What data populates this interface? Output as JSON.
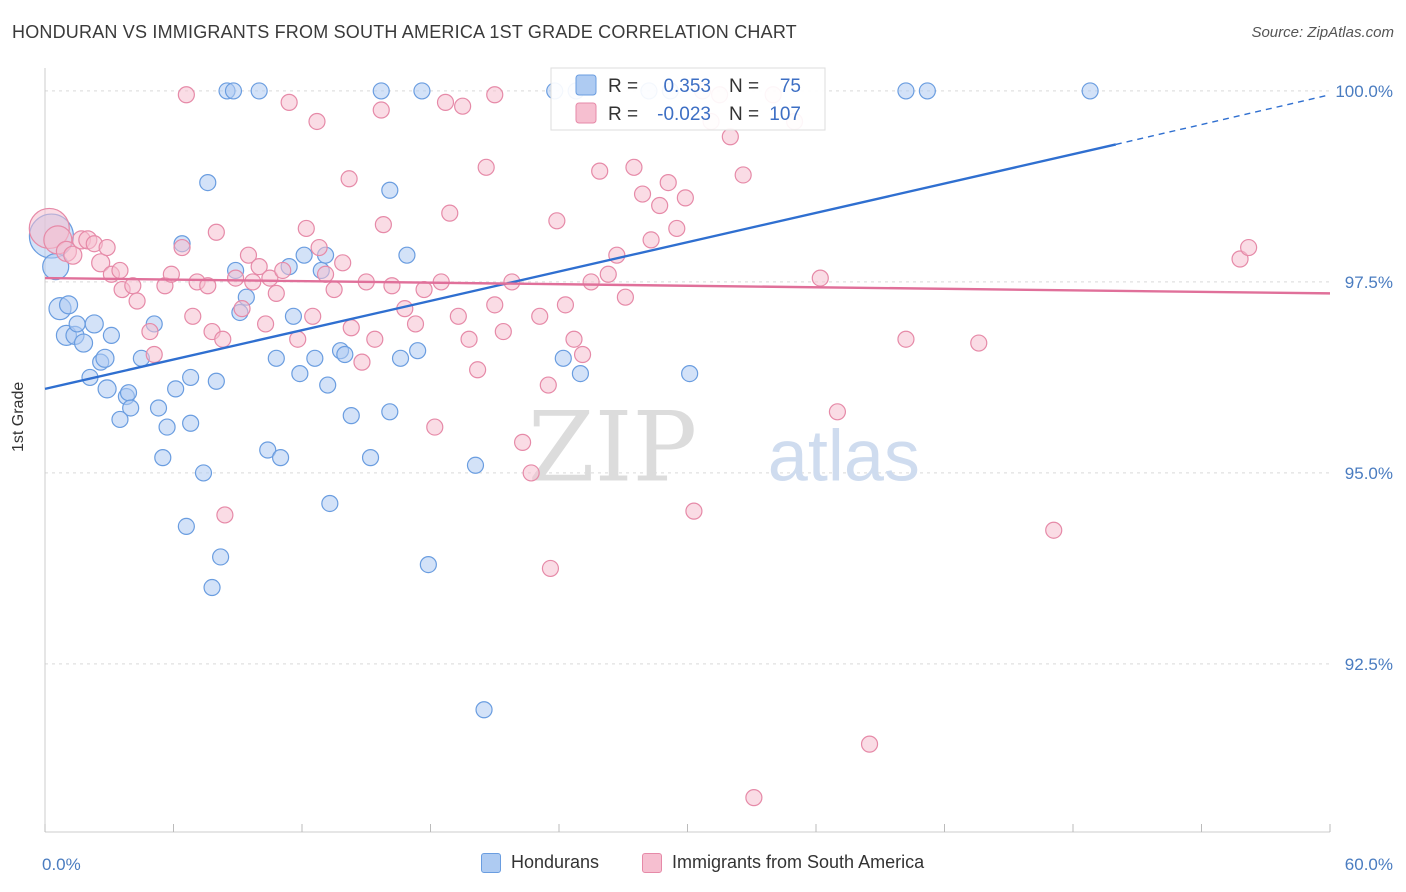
{
  "chart_data": {
    "type": "scatter",
    "title": "HONDURAN VS IMMIGRANTS FROM SOUTH AMERICA 1ST GRADE CORRELATION CHART",
    "source": "Source: ZipAtlas.com",
    "ylabel": "1st Grade",
    "xlim": [
      0,
      60
    ],
    "ylim": [
      90.3,
      100.3
    ],
    "x_ticks": [
      {
        "value": 0,
        "label": "0.0%"
      },
      {
        "value": 60,
        "label": "60.0%"
      }
    ],
    "y_ticks": [
      {
        "value": 100,
        "label": "100.0%"
      },
      {
        "value": 97.5,
        "label": "97.5%"
      },
      {
        "value": 95,
        "label": "95.0%"
      },
      {
        "value": 92.5,
        "label": "92.5%"
      }
    ],
    "watermark": {
      "zip": "ZIP",
      "atlas": "atlas"
    },
    "legend": {
      "r_label": "R =",
      "n_label": "N =",
      "entries": [
        {
          "r": "0.353",
          "n": "75"
        },
        {
          "r": "-0.023",
          "n": "107"
        }
      ]
    },
    "series": [
      {
        "name": "Hondurans",
        "color": "#6a9de0",
        "fill": "#aecbf2",
        "trend": {
          "x0": 0,
          "y0": 96.1,
          "x1": 50,
          "y1": 99.3,
          "dash_to_x": 60,
          "dash_to_y": 99.95
        },
        "points": [
          [
            0.3,
            98.1,
            22
          ],
          [
            0.5,
            97.7,
            13
          ],
          [
            0.7,
            97.15,
            11
          ],
          [
            1.0,
            96.8,
            10
          ],
          [
            1.1,
            97.2,
            9
          ],
          [
            1.4,
            96.8,
            9
          ],
          [
            1.5,
            96.95,
            8
          ],
          [
            1.8,
            96.7,
            9
          ],
          [
            2.1,
            96.25,
            8
          ],
          [
            2.3,
            96.95,
            9
          ],
          [
            2.6,
            96.45,
            8
          ],
          [
            2.8,
            96.5,
            9
          ],
          [
            3.1,
            96.8,
            8
          ],
          [
            2.9,
            96.1,
            9
          ],
          [
            3.8,
            96.0,
            8
          ],
          [
            3.9,
            96.05,
            8
          ],
          [
            4.0,
            95.85,
            8
          ],
          [
            3.5,
            95.7,
            8
          ],
          [
            4.5,
            96.5,
            8
          ],
          [
            5.1,
            96.95,
            8
          ],
          [
            5.3,
            95.85,
            8
          ],
          [
            5.5,
            95.2,
            8
          ],
          [
            5.7,
            95.6,
            8
          ],
          [
            6.1,
            96.1,
            8
          ],
          [
            6.4,
            98.0,
            8
          ],
          [
            6.6,
            94.3,
            8
          ],
          [
            6.8,
            96.25,
            8
          ],
          [
            6.8,
            95.65,
            8
          ],
          [
            7.4,
            95.0,
            8
          ],
          [
            7.6,
            98.8,
            8
          ],
          [
            7.8,
            93.5,
            8
          ],
          [
            8.0,
            96.2,
            8
          ],
          [
            8.2,
            93.9,
            8
          ],
          [
            8.5,
            100.0,
            8
          ],
          [
            8.8,
            100.0,
            8
          ],
          [
            8.9,
            97.65,
            8
          ],
          [
            9.1,
            97.1,
            8
          ],
          [
            9.4,
            97.3,
            8
          ],
          [
            10.0,
            100.0,
            8
          ],
          [
            10.4,
            95.3,
            8
          ],
          [
            10.8,
            96.5,
            8
          ],
          [
            11.0,
            95.2,
            8
          ],
          [
            11.4,
            97.7,
            8
          ],
          [
            11.6,
            97.05,
            8
          ],
          [
            11.9,
            96.3,
            8
          ],
          [
            12.1,
            97.85,
            8
          ],
          [
            12.6,
            96.5,
            8
          ],
          [
            12.9,
            97.65,
            8
          ],
          [
            13.1,
            97.85,
            8
          ],
          [
            13.2,
            96.15,
            8
          ],
          [
            13.3,
            94.6,
            8
          ],
          [
            13.8,
            96.6,
            8
          ],
          [
            14.0,
            96.55,
            8
          ],
          [
            14.3,
            95.75,
            8
          ],
          [
            15.2,
            95.2,
            8
          ],
          [
            15.7,
            100.0,
            8
          ],
          [
            16.1,
            98.7,
            8
          ],
          [
            16.1,
            95.8,
            8
          ],
          [
            16.6,
            96.5,
            8
          ],
          [
            16.9,
            97.85,
            8
          ],
          [
            17.4,
            96.6,
            8
          ],
          [
            17.6,
            100.0,
            8
          ],
          [
            17.9,
            93.8,
            8
          ],
          [
            20.1,
            95.1,
            8
          ],
          [
            20.5,
            91.9,
            8
          ],
          [
            24.2,
            96.5,
            8
          ],
          [
            24.8,
            100.0,
            8
          ],
          [
            25.0,
            96.3,
            8
          ],
          [
            28.2,
            100.0,
            8
          ],
          [
            29.2,
            100.0,
            8
          ],
          [
            30.1,
            96.3,
            8
          ],
          [
            40.2,
            100.0,
            8
          ],
          [
            41.2,
            100.0,
            8
          ],
          [
            48.8,
            100.0,
            8
          ],
          [
            23.8,
            100.0,
            8
          ]
        ]
      },
      {
        "name": "Immigrants from South America",
        "color": "#e68aa8",
        "fill": "#f6bfd0",
        "trend": {
          "x0": 0,
          "y0": 97.55,
          "x1": 60,
          "y1": 97.35
        },
        "points": [
          [
            0.2,
            98.2,
            20
          ],
          [
            0.6,
            98.05,
            14
          ],
          [
            1.0,
            97.9,
            10
          ],
          [
            1.3,
            97.85,
            9
          ],
          [
            1.7,
            98.05,
            9
          ],
          [
            2.0,
            98.05,
            9
          ],
          [
            2.3,
            98.0,
            8
          ],
          [
            2.6,
            97.75,
            9
          ],
          [
            2.9,
            97.95,
            8
          ],
          [
            3.1,
            97.6,
            8
          ],
          [
            3.5,
            97.65,
            8
          ],
          [
            3.6,
            97.4,
            8
          ],
          [
            4.1,
            97.45,
            8
          ],
          [
            4.3,
            97.25,
            8
          ],
          [
            4.9,
            96.85,
            8
          ],
          [
            5.1,
            96.55,
            8
          ],
          [
            5.6,
            97.45,
            8
          ],
          [
            5.9,
            97.6,
            8
          ],
          [
            6.4,
            97.95,
            8
          ],
          [
            6.9,
            97.05,
            8
          ],
          [
            7.1,
            97.5,
            8
          ],
          [
            7.6,
            97.45,
            8
          ],
          [
            7.8,
            96.85,
            8
          ],
          [
            8.0,
            98.15,
            8
          ],
          [
            8.3,
            96.75,
            8
          ],
          [
            8.9,
            97.55,
            8
          ],
          [
            9.2,
            97.15,
            8
          ],
          [
            9.5,
            97.85,
            8
          ],
          [
            9.7,
            97.5,
            8
          ],
          [
            10.0,
            97.7,
            8
          ],
          [
            10.3,
            96.95,
            8
          ],
          [
            10.5,
            97.55,
            8
          ],
          [
            10.8,
            97.35,
            8
          ],
          [
            11.1,
            97.65,
            8
          ],
          [
            11.8,
            96.75,
            8
          ],
          [
            12.2,
            98.2,
            8
          ],
          [
            12.5,
            97.05,
            8
          ],
          [
            12.8,
            97.95,
            8
          ],
          [
            13.1,
            97.6,
            8
          ],
          [
            13.5,
            97.4,
            8
          ],
          [
            13.9,
            97.75,
            8
          ],
          [
            14.3,
            96.9,
            8
          ],
          [
            14.8,
            96.45,
            8
          ],
          [
            15.0,
            97.5,
            8
          ],
          [
            15.4,
            96.75,
            8
          ],
          [
            15.8,
            98.25,
            8
          ],
          [
            16.2,
            97.45,
            8
          ],
          [
            16.8,
            97.15,
            8
          ],
          [
            17.3,
            96.95,
            8
          ],
          [
            17.7,
            97.4,
            8
          ],
          [
            18.2,
            95.6,
            8
          ],
          [
            18.5,
            97.5,
            8
          ],
          [
            18.9,
            98.4,
            8
          ],
          [
            19.3,
            97.05,
            8
          ],
          [
            19.8,
            96.75,
            8
          ],
          [
            20.2,
            96.35,
            8
          ],
          [
            20.6,
            99.0,
            8
          ],
          [
            21.0,
            97.2,
            8
          ],
          [
            21.4,
            96.85,
            8
          ],
          [
            21.8,
            97.5,
            8
          ],
          [
            22.3,
            95.4,
            8
          ],
          [
            22.7,
            95.0,
            8
          ],
          [
            23.1,
            97.05,
            8
          ],
          [
            23.5,
            96.15,
            8
          ],
          [
            23.9,
            98.3,
            8
          ],
          [
            24.3,
            97.2,
            8
          ],
          [
            24.7,
            96.75,
            8
          ],
          [
            25.1,
            96.55,
            8
          ],
          [
            25.5,
            97.5,
            8
          ],
          [
            25.9,
            98.95,
            8
          ],
          [
            26.3,
            97.6,
            8
          ],
          [
            26.7,
            97.85,
            8
          ],
          [
            27.1,
            97.3,
            8
          ],
          [
            27.5,
            99.0,
            8
          ],
          [
            27.9,
            98.65,
            8
          ],
          [
            28.3,
            98.05,
            8
          ],
          [
            28.7,
            98.5,
            8
          ],
          [
            29.1,
            98.8,
            8
          ],
          [
            29.5,
            98.2,
            8
          ],
          [
            29.9,
            98.6,
            8
          ],
          [
            30.3,
            94.5,
            8
          ],
          [
            30.7,
            100.0,
            8
          ],
          [
            31.1,
            99.6,
            8
          ],
          [
            31.5,
            99.95,
            8
          ],
          [
            32.0,
            99.4,
            8
          ],
          [
            32.6,
            98.9,
            8
          ],
          [
            33.1,
            90.75,
            8
          ],
          [
            34.0,
            99.95,
            8
          ],
          [
            35.0,
            99.6,
            8
          ],
          [
            36.2,
            97.55,
            8
          ],
          [
            37.0,
            95.8,
            8
          ],
          [
            38.5,
            91.45,
            8
          ],
          [
            40.2,
            96.75,
            8
          ],
          [
            43.6,
            96.7,
            8
          ],
          [
            47.1,
            94.25,
            8
          ],
          [
            55.8,
            97.8,
            8
          ],
          [
            56.2,
            97.95,
            8
          ],
          [
            21.0,
            99.95,
            8
          ],
          [
            18.7,
            99.85,
            8
          ],
          [
            23.6,
            93.75,
            8
          ],
          [
            19.5,
            99.8,
            8
          ],
          [
            15.7,
            99.75,
            8
          ],
          [
            14.2,
            98.85,
            8
          ],
          [
            12.7,
            99.6,
            8
          ],
          [
            11.4,
            99.85,
            8
          ],
          [
            8.4,
            94.45,
            8
          ],
          [
            6.6,
            99.95,
            8
          ]
        ]
      }
    ]
  },
  "bottom_legend": [
    "Hondurans",
    "Immigrants from South America"
  ]
}
